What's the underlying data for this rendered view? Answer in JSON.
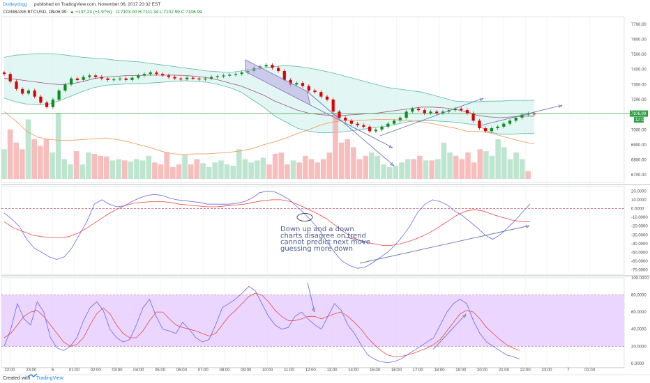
{
  "header": {
    "author": "Dudleydogg",
    "published": "published on TradingView.com, November 06, 2017 20:32 EST",
    "symbol": "COINBASE:BTCUSD, 15",
    "last": "7106.99",
    "change": "▲ +137.23 (+1.97%)",
    "ohlc": "O:7103.00 H:7111.34 L:7102.99 C:7106.99"
  },
  "footer": {
    "created_with": "Created with",
    "brand": "TradingView"
  },
  "colors": {
    "up": "#0a8c1e",
    "down": "#e00000",
    "bb_fill": "#d6f2ef",
    "bb_line": "#5cb8a6",
    "basis": "#a3557a",
    "ema": "#f0a060",
    "ribbon": "#b6a6e0",
    "stoch_band": "#e6ccff",
    "k_line": "#6666ee",
    "d_line": "#ee4444",
    "price_line": "#3ca048",
    "annot": "#4a5a8a"
  },
  "price_axis": {
    "ticks": [
      "7700.00",
      "7600.00",
      "7500.00",
      "7400.00",
      "7300.00",
      "7200.00",
      "7000.00",
      "6900.00",
      "6800.00",
      "6700.00"
    ],
    "last_label": "7106.99",
    "countdown": "12:18"
  },
  "osc_axis": {
    "ticks": [
      "20.0000",
      "10.0000",
      "0.0000",
      "-10.0000",
      "-20.0000",
      "-30.0000",
      "-40.0000",
      "-50.0000",
      "-60.0000",
      "-70.0000"
    ]
  },
  "stoch_axis": {
    "ticks": [
      "100.0000",
      "80.0000",
      "60.0000",
      "40.0000",
      "20.0000",
      "0.0000"
    ]
  },
  "time_axis": {
    "ticks": [
      "22:00",
      "23:00",
      "6",
      "01:00",
      "02:00",
      "03:00",
      "04:00",
      "05:00",
      "06:00",
      "07:00",
      "08:00",
      "09:00",
      "10:00",
      "11:00",
      "12:00",
      "13:00",
      "14:00",
      "15:00",
      "16:00",
      "17:00",
      "18:00",
      "19:00",
      "20:00",
      "21:00",
      "22:00",
      "23:00",
      "7",
      "01:00"
    ]
  },
  "annotation": {
    "lines": [
      "Down up and a down",
      "charts disagree on trend",
      "cannot predict next move",
      "guessing more down"
    ]
  },
  "chart_data": [
    {
      "type": "candlestick",
      "title": "COINBASE:BTCUSD, 15",
      "ylim": [
        6650,
        7750
      ],
      "close": [
        7370,
        7320,
        7270,
        7240,
        7260,
        7220,
        7180,
        7150,
        7200,
        7260,
        7300,
        7340,
        7330,
        7350,
        7360,
        7350,
        7340,
        7330,
        7335,
        7340,
        7330,
        7345,
        7360,
        7370,
        7380,
        7370,
        7360,
        7350,
        7340,
        7335,
        7345,
        7340,
        7335,
        7340,
        7350,
        7355,
        7360,
        7365,
        7370,
        7380,
        7390,
        7410,
        7420,
        7430,
        7410,
        7390,
        7330,
        7300,
        7310,
        7290,
        7260,
        7250,
        7220,
        7200,
        7120,
        7080,
        7060,
        7040,
        7030,
        7020,
        6990,
        7000,
        7020,
        7040,
        7060,
        7080,
        7120,
        7140,
        7130,
        7110,
        7120,
        7110,
        7120,
        7130,
        7140,
        7130,
        7110,
        7060,
        7010,
        6990,
        7010,
        7020,
        7040,
        7060,
        7080,
        7100,
        7108,
        7107
      ],
      "volume_relative": [
        45,
        75,
        55,
        45,
        90,
        60,
        50,
        60,
        40,
        100,
        30,
        22,
        42,
        22,
        40,
        38,
        35,
        34,
        28,
        30,
        28,
        26,
        30,
        28,
        35,
        25,
        22,
        40,
        18,
        22,
        36,
        22,
        30,
        24,
        18,
        25,
        28,
        22,
        20,
        45,
        30,
        25,
        28,
        32,
        22,
        38,
        40,
        22,
        28,
        25,
        35,
        30,
        25,
        30,
        40,
        100,
        55,
        60,
        48,
        30,
        35,
        40,
        35,
        22,
        18,
        20,
        25,
        30,
        30,
        35,
        28,
        28,
        30,
        55,
        40,
        35,
        30,
        40,
        25,
        45,
        42,
        35,
        60,
        48,
        30,
        40,
        30,
        12
      ],
      "bollinger_upper": [
        7480,
        7495,
        7500,
        7505,
        7505,
        7500,
        7490,
        7480,
        7475,
        7470,
        7460,
        7455,
        7450,
        7440,
        7430,
        7420,
        7410,
        7400,
        7390,
        7385,
        7380,
        7390,
        7400,
        7410,
        7420,
        7425,
        7420,
        7410,
        7395,
        7380,
        7360,
        7340,
        7320,
        7300,
        7280,
        7270,
        7260,
        7250,
        7230,
        7210,
        7190,
        7185,
        7185,
        7190,
        7190,
        7195,
        7195,
        7195
      ],
      "bollinger_lower": [
        7210,
        7185,
        7170,
        7165,
        7170,
        7195,
        7225,
        7255,
        7280,
        7295,
        7300,
        7305,
        7305,
        7310,
        7315,
        7320,
        7325,
        7320,
        7315,
        7300,
        7280,
        7250,
        7200,
        7150,
        7090,
        7050,
        7010,
        6990,
        6980,
        6980,
        6985,
        6995,
        7005,
        7015,
        7025,
        7040,
        7055,
        7060,
        7060,
        7055,
        7050,
        7040,
        7030,
        6985,
        6970,
        6970,
        6975,
        6975
      ],
      "basis": [
        7340,
        7335,
        7325,
        7315,
        7305,
        7300,
        7305,
        7320,
        7340,
        7350,
        7355,
        7360,
        7360,
        7362,
        7362,
        7362,
        7360,
        7355,
        7345,
        7330,
        7310,
        7290,
        7260,
        7230,
        7190,
        7160,
        7130,
        7110,
        7100,
        7095,
        7095,
        7100,
        7105,
        7110,
        7120,
        7130,
        7140,
        7150,
        7150,
        7145,
        7135,
        7120,
        7095,
        7085,
        7080,
        7085,
        7090,
        7090
      ],
      "ema": [
        7120,
        7060,
        6990,
        6950,
        6935,
        6930,
        6930,
        6935,
        6940,
        6945,
        6935,
        6920,
        6900,
        6880,
        6855,
        6840,
        6835,
        6840,
        6840,
        6845,
        6850,
        6860,
        6875,
        6900,
        6920,
        6945,
        6975,
        7000,
        7030,
        7050,
        7060,
        7062,
        7064,
        7068,
        7068,
        7065,
        7060,
        7052,
        7040,
        7025,
        7010,
        6990,
        6990,
        6980,
        6960,
        6940,
        6920,
        6905
      ]
    },
    {
      "type": "line",
      "series": [
        {
          "values": [
            -5,
            -12,
            -20,
            -35,
            -45,
            -50,
            -55,
            -58,
            -55,
            -45,
            -30,
            -15,
            5,
            10,
            5,
            2,
            3,
            8,
            12,
            15,
            16,
            15,
            12,
            10,
            9,
            8,
            7,
            5,
            5,
            5,
            5,
            6,
            8,
            12,
            18,
            20,
            19,
            15,
            10,
            2,
            -6,
            -15,
            -25,
            -38,
            -50,
            -60,
            -65,
            -68,
            -67,
            -62,
            -56,
            -50,
            -42,
            -32,
            -20,
            -5,
            5,
            10,
            8,
            4,
            -3,
            -8,
            -15,
            -22,
            -30,
            -35,
            -30,
            -22,
            -14,
            -4,
            5
          ]
        },
        {
          "values": [
            -15,
            -22,
            -26,
            -30,
            -32,
            -33,
            -33,
            -32,
            -28,
            -22,
            -15,
            -8,
            -2,
            3,
            6,
            7,
            8,
            8,
            7,
            5,
            4,
            3,
            2,
            2,
            3,
            4,
            5,
            7,
            9,
            10,
            10,
            8,
            4,
            -1,
            -6,
            -12,
            -20,
            -28,
            -34,
            -38,
            -40,
            -42,
            -42,
            -40,
            -37,
            -33,
            -28,
            -22,
            -15,
            -8,
            -3,
            -1,
            -3,
            -7,
            -10,
            -13,
            -15,
            -15
          ]
        }
      ],
      "ylim": [
        -75,
        25
      ]
    },
    {
      "type": "line",
      "series": [
        {
          "values": [
            20,
            40,
            70,
            52,
            45,
            72,
            60,
            30,
            18,
            15,
            20,
            30,
            50,
            65,
            72,
            62,
            40,
            30,
            25,
            28,
            45,
            65,
            75,
            55,
            40,
            38,
            35,
            48,
            40,
            30,
            25,
            28,
            45,
            65,
            70,
            75,
            82,
            90,
            85,
            70,
            55,
            45,
            40,
            42,
            55,
            60,
            52,
            45,
            40,
            55,
            70,
            62,
            45,
            35,
            22,
            10,
            5,
            2,
            1,
            2,
            5,
            10,
            15,
            20,
            25,
            30,
            45,
            60,
            70,
            75,
            70,
            50,
            35,
            25,
            20,
            15,
            10,
            8,
            5
          ]
        },
        {
          "values": [
            30,
            35,
            45,
            55,
            60,
            62,
            55,
            45,
            35,
            25,
            20,
            22,
            30,
            45,
            58,
            65,
            58,
            45,
            35,
            30,
            30,
            38,
            50,
            60,
            60,
            52,
            45,
            42,
            40,
            38,
            35,
            32,
            35,
            45,
            55,
            62,
            70,
            78,
            82,
            80,
            72,
            62,
            55,
            50,
            50,
            52,
            55,
            55,
            52,
            55,
            58,
            60,
            55,
            48,
            40,
            30,
            22,
            15,
            10,
            8,
            8,
            10,
            12,
            15,
            18,
            22,
            28,
            38,
            48,
            58,
            62,
            60,
            52,
            42,
            35,
            28,
            22,
            18,
            15
          ]
        }
      ],
      "ylim": [
        -5,
        100
      ]
    }
  ]
}
